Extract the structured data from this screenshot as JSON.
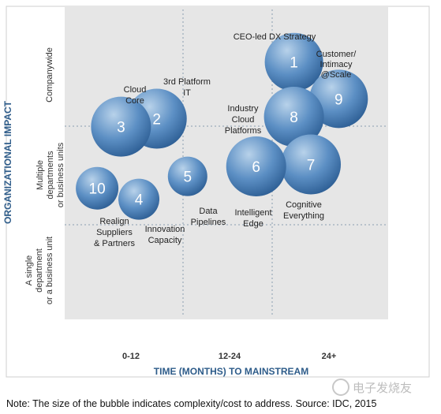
{
  "chart_data": {
    "type": "bubble",
    "xlabel": "TIME (MONTHS) TO MAINSTREAM",
    "ylabel": "ORGANIZATIONAL IMPACT",
    "x_categories": [
      "0-12",
      "12-24",
      "24+"
    ],
    "y_categories": [
      "A single department or a business unit",
      "Multiple departments or business units",
      "Companywide"
    ],
    "grid": true,
    "points": [
      {
        "id": "1",
        "x": 2.1,
        "y": 2.55,
        "size": 37,
        "label": "CEO-led DX Strategy"
      },
      {
        "id": "9",
        "x": 2.55,
        "y": 2.18,
        "size": 37,
        "label": "Customer/ Intimacy @Scale"
      },
      {
        "id": "8",
        "x": 2.1,
        "y": 2.0,
        "size": 38,
        "label": "Industry Cloud Platforms"
      },
      {
        "id": "2",
        "x": 0.72,
        "y": 1.98,
        "size": 38,
        "label": "3rd Platform IT"
      },
      {
        "id": "3",
        "x": 0.36,
        "y": 1.9,
        "size": 38,
        "label": "Cloud Core"
      },
      {
        "id": "7",
        "x": 2.27,
        "y": 1.52,
        "size": 38,
        "label": "Cognitive Everything"
      },
      {
        "id": "6",
        "x": 1.72,
        "y": 1.5,
        "size": 38,
        "label": "Intelligent Edge"
      },
      {
        "id": "5",
        "x": 1.03,
        "y": 1.4,
        "size": 25,
        "label": "Data Pipelines"
      },
      {
        "id": "4",
        "x": 0.54,
        "y": 1.17,
        "size": 26,
        "label": "Innovation Capacity"
      },
      {
        "id": "10",
        "x": 0.12,
        "y": 1.28,
        "size": 27,
        "label": "Realign Suppliers & Partners"
      }
    ]
  },
  "texts": {
    "y_band_top": "Companywide",
    "y_band_mid": [
      "Multiple",
      "departments",
      "or business units"
    ],
    "y_band_bot": [
      "A single",
      "department",
      "or a business unit"
    ],
    "note": "Note: The size of the bubble indicates complexity/cost to address. Source: IDC, 2015",
    "watermark": "电子发烧友"
  },
  "colors": {
    "plot_bg": "#e6e6e6",
    "bubble_light": "#b8d2ea",
    "bubble_mid": "#5c8fc4",
    "bubble_dark": "#2c5d93",
    "axis_title": "#2e5c8a"
  }
}
